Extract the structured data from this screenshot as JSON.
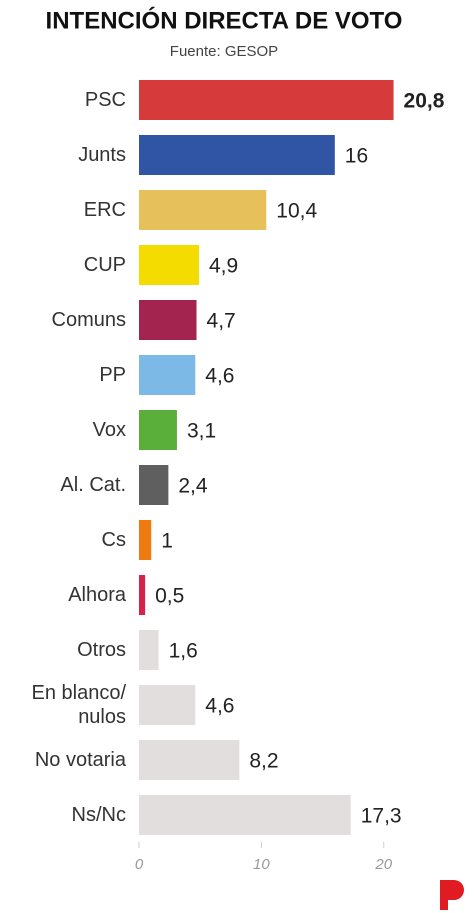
{
  "chart_data": {
    "type": "hbar",
    "title": "INTENCIÓN DIRECTA DE VOTO",
    "subtitle": "Fuente: GESOP",
    "categories": [
      "PSC",
      "Junts",
      "ERC",
      "CUP",
      "Comuns",
      "PP",
      "Vox",
      "Al. Cat.",
      "Cs",
      "Alhora",
      "Otros",
      "En blanco/ nulos",
      "No votaria",
      "Ns/Nc"
    ],
    "values": [
      20.8,
      16,
      10.4,
      4.9,
      4.7,
      4.6,
      3.1,
      2.4,
      1,
      0.5,
      1.6,
      4.6,
      8.2,
      17.3
    ],
    "value_labels": [
      "20,8",
      "16",
      "10,4",
      "4,9",
      "4,7",
      "4,6",
      "3,1",
      "2,4",
      "1",
      "0,5",
      "1,6",
      "4,6",
      "8,2",
      "17,3"
    ],
    "colors": [
      "#d63a3a",
      "#2f55a4",
      "#e6c15b",
      "#f5dc00",
      "#a3254f",
      "#7db9e6",
      "#5aae3a",
      "#5f5f5f",
      "#ef7b10",
      "#d6234a",
      "#e2dede",
      "#e2dede",
      "#e2dede",
      "#e2dede"
    ],
    "xlim": [
      0,
      21
    ],
    "xticks": [
      0,
      10,
      20
    ]
  }
}
